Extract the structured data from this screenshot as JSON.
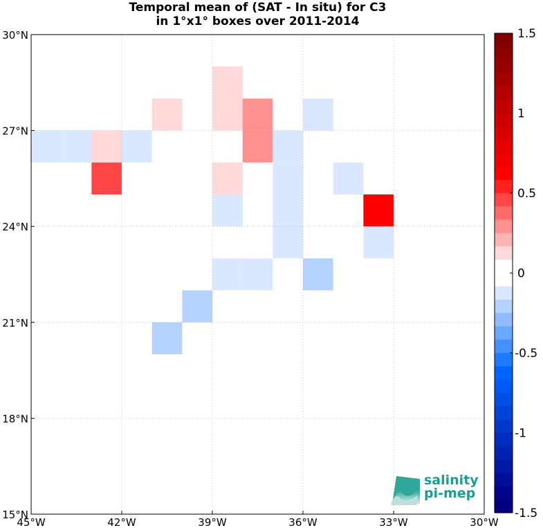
{
  "title": {
    "line1": "Temporal mean of (SAT - In situ) for C3",
    "line2": "in 1°x1° boxes over 2011-2014"
  },
  "logo": {
    "line1": "salinity",
    "line2": "pi-mep"
  },
  "axes": {
    "lon_range": [
      -45,
      -30
    ],
    "lat_range": [
      15,
      30
    ],
    "x_ticks": [
      {
        "value": -45,
        "label": "45°W"
      },
      {
        "value": -42,
        "label": "42°W"
      },
      {
        "value": -39,
        "label": "39°W"
      },
      {
        "value": -36,
        "label": "36°W"
      },
      {
        "value": -33,
        "label": "33°W"
      },
      {
        "value": -30,
        "label": "30°W"
      }
    ],
    "y_ticks": [
      {
        "value": 30,
        "label": "30°N"
      },
      {
        "value": 27,
        "label": "27°N"
      },
      {
        "value": 24,
        "label": "24°N"
      },
      {
        "value": 21,
        "label": "21°N"
      },
      {
        "value": 18,
        "label": "18°N"
      },
      {
        "value": 15,
        "label": "15°N"
      }
    ],
    "grid": true
  },
  "colorbar": {
    "range": [
      -1.5,
      1.5
    ],
    "ticks": [
      {
        "value": 1.5,
        "label": "1.5"
      },
      {
        "value": 1,
        "label": "1"
      },
      {
        "value": 0.5,
        "label": "0.5"
      },
      {
        "value": 0,
        "label": "0"
      },
      {
        "value": -0.5,
        "label": "-0.5"
      },
      {
        "value": -1,
        "label": "-1"
      },
      {
        "value": -1.5,
        "label": "-1.5"
      }
    ],
    "colors_top_to_bottom": [
      "#800000",
      "#8c0000",
      "#990000",
      "#a60000",
      "#b30000",
      "#c00000",
      "#cc0000",
      "#d90000",
      "#e60000",
      "#f20000",
      "#ff0000",
      "#ff2020",
      "#ff4545",
      "#ff6b6b",
      "#ff9090",
      "#ffb4b4",
      "#ffd9d9",
      "#ffffff",
      "#ffffff",
      "#d9e8ff",
      "#b4d2ff",
      "#90bcff",
      "#6ba6ff",
      "#4590ff",
      "#207aff",
      "#0064ff",
      "#0059f2",
      "#004ee6",
      "#0043d9",
      "#0038cc",
      "#002dbf",
      "#0022b3",
      "#0018a6",
      "#000e99",
      "#00068c",
      "#000080"
    ]
  },
  "chart_data": {
    "type": "heatmap",
    "title": "Temporal mean of (SAT - In situ) for C3 in 1°x1° boxes over 2011-2014",
    "cell_size_deg": 1,
    "cells": [
      {
        "lon": -45,
        "lat": 26,
        "value": -0.1,
        "color": "#d9e8ff"
      },
      {
        "lon": -44,
        "lat": 26,
        "value": -0.1,
        "color": "#d9e8ff"
      },
      {
        "lon": -43,
        "lat": 26,
        "value": 0.1,
        "color": "#ffd9d9"
      },
      {
        "lon": -42,
        "lat": 26,
        "value": -0.1,
        "color": "#d9e8ff"
      },
      {
        "lon": -43,
        "lat": 25,
        "value": 0.6,
        "color": "#ff4545"
      },
      {
        "lon": -41,
        "lat": 27,
        "value": 0.1,
        "color": "#ffd9d9"
      },
      {
        "lon": -39,
        "lat": 28,
        "value": 0.1,
        "color": "#ffd9d9"
      },
      {
        "lon": -39,
        "lat": 27,
        "value": 0.1,
        "color": "#ffd9d9"
      },
      {
        "lon": -38,
        "lat": 26,
        "value": 0.3,
        "color": "#ff9090"
      },
      {
        "lon": -38,
        "lat": 27,
        "value": 0.3,
        "color": "#ff9090"
      },
      {
        "lon": -39,
        "lat": 25,
        "value": 0.1,
        "color": "#ffd9d9"
      },
      {
        "lon": -39,
        "lat": 24,
        "value": -0.1,
        "color": "#d9e8ff"
      },
      {
        "lon": -36,
        "lat": 27,
        "value": -0.1,
        "color": "#d9e8ff"
      },
      {
        "lon": -37,
        "lat": 26,
        "value": -0.1,
        "color": "#d9e8ff"
      },
      {
        "lon": -37,
        "lat": 25,
        "value": -0.1,
        "color": "#d9e8ff"
      },
      {
        "lon": -37,
        "lat": 24,
        "value": -0.1,
        "color": "#d9e8ff"
      },
      {
        "lon": -37,
        "lat": 23,
        "value": -0.1,
        "color": "#d9e8ff"
      },
      {
        "lon": -35,
        "lat": 25,
        "value": -0.1,
        "color": "#d9e8ff"
      },
      {
        "lon": -34,
        "lat": 24,
        "value": 0.8,
        "color": "#ff0000"
      },
      {
        "lon": -34,
        "lat": 23,
        "value": -0.1,
        "color": "#d9e8ff"
      },
      {
        "lon": -39,
        "lat": 22,
        "value": -0.1,
        "color": "#d9e8ff"
      },
      {
        "lon": -38,
        "lat": 22,
        "value": -0.1,
        "color": "#d9e8ff"
      },
      {
        "lon": -36,
        "lat": 22,
        "value": -0.2,
        "color": "#b4d2ff"
      },
      {
        "lon": -40,
        "lat": 21,
        "value": -0.2,
        "color": "#b4d2ff"
      },
      {
        "lon": -41,
        "lat": 20,
        "value": -0.2,
        "color": "#b4d2ff"
      }
    ]
  }
}
